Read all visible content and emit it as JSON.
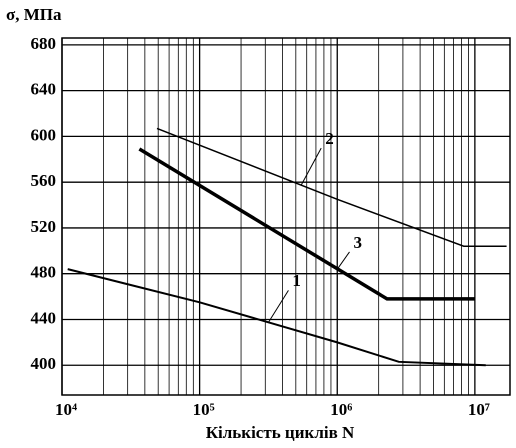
{
  "chart_data": {
    "type": "line",
    "y_label": "σ, МПа",
    "x_label": "Кількість циклів N",
    "log_x": true,
    "grid": true,
    "minor_grid": true,
    "xlim": [
      10000,
      18000000
    ],
    "ylim": [
      374,
      686
    ],
    "xticks": [
      {
        "value": 10000,
        "label": "10⁴"
      },
      {
        "value": 100000,
        "label": "10⁵"
      },
      {
        "value": 1000000,
        "label": "10⁶"
      },
      {
        "value": 10000000,
        "label": "10⁷"
      }
    ],
    "yticks": [
      400,
      440,
      480,
      520,
      560,
      600,
      640,
      680
    ],
    "series": [
      {
        "name": "1",
        "color": "#000000",
        "line_width": 2,
        "x": [
          11000,
          100000,
          1000000,
          2800000,
          12000000
        ],
        "values": [
          484,
          455,
          420,
          403,
          400
        ]
      },
      {
        "name": "2",
        "color": "#000000",
        "line_width": 1.5,
        "x": [
          49000,
          1000000,
          8300000,
          17000000
        ],
        "values": [
          607,
          545,
          504,
          504
        ]
      },
      {
        "name": "3",
        "color": "#000000",
        "line_width": 3.5,
        "x": [
          36500,
          2300000,
          10000000
        ],
        "values": [
          589,
          458,
          458
        ]
      }
    ]
  }
}
